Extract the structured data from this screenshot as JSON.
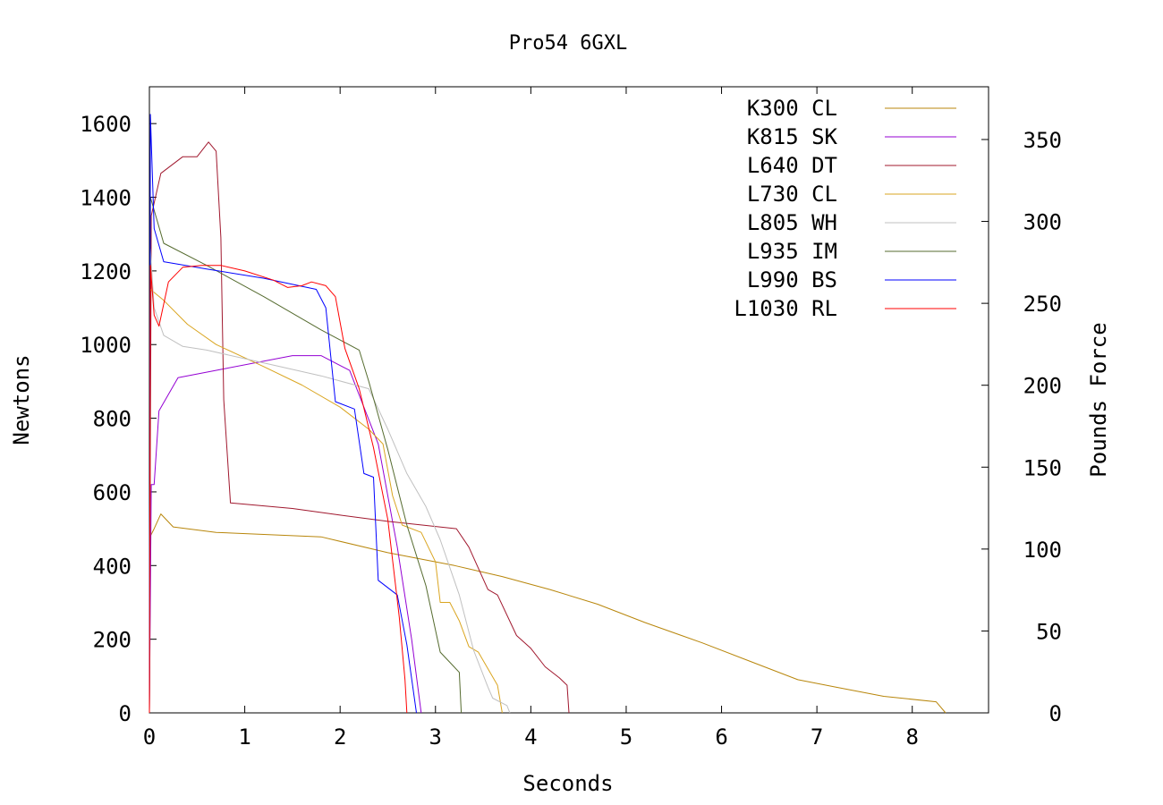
{
  "chart_data": {
    "type": "line",
    "title": "Pro54 6GXL",
    "xlabel": "Seconds",
    "ylabel": "Newtons",
    "y2label": "Pounds Force",
    "xlim": [
      0,
      8.8
    ],
    "ylim": [
      0,
      1700
    ],
    "y2lim": [
      0,
      382.2
    ],
    "xticks": [
      "0",
      "1",
      "2",
      "3",
      "4",
      "5",
      "6",
      "7",
      "8"
    ],
    "yticks": [
      "0",
      "200",
      "400",
      "600",
      "800",
      "1000",
      "1200",
      "1400",
      "1600"
    ],
    "y2ticks": [
      "0",
      "50",
      "100",
      "150",
      "200",
      "250",
      "300",
      "350"
    ],
    "grid": false,
    "legend_position": "top-right",
    "series": [
      {
        "name": "K300 CL",
        "color": "#b8860b",
        "points": [
          [
            0,
            0
          ],
          [
            0.01,
            480
          ],
          [
            0.05,
            500
          ],
          [
            0.12,
            540
          ],
          [
            0.25,
            505
          ],
          [
            0.7,
            490
          ],
          [
            1.8,
            478
          ],
          [
            2.5,
            435
          ],
          [
            3.2,
            400
          ],
          [
            3.7,
            370
          ],
          [
            4.2,
            335
          ],
          [
            4.7,
            295
          ],
          [
            5.2,
            245
          ],
          [
            5.8,
            190
          ],
          [
            6.3,
            140
          ],
          [
            6.8,
            90
          ],
          [
            7.2,
            70
          ],
          [
            7.7,
            45
          ],
          [
            8.25,
            30
          ],
          [
            8.35,
            0
          ]
        ]
      },
      {
        "name": "K815 SK",
        "color": "#9400d3",
        "points": [
          [
            0,
            0
          ],
          [
            0.02,
            620
          ],
          [
            0.05,
            620
          ],
          [
            0.1,
            820
          ],
          [
            0.3,
            910
          ],
          [
            0.8,
            935
          ],
          [
            1.5,
            970
          ],
          [
            1.8,
            970
          ],
          [
            2.1,
            930
          ],
          [
            2.4,
            730
          ],
          [
            2.6,
            450
          ],
          [
            2.75,
            200
          ],
          [
            2.85,
            0
          ]
        ]
      },
      {
        "name": "L640 DT",
        "color": "#a0182e",
        "points": [
          [
            0,
            0
          ],
          [
            0.02,
            1350
          ],
          [
            0.12,
            1465
          ],
          [
            0.35,
            1510
          ],
          [
            0.5,
            1510
          ],
          [
            0.62,
            1550
          ],
          [
            0.7,
            1525
          ],
          [
            0.75,
            1290
          ],
          [
            0.78,
            850
          ],
          [
            0.85,
            570
          ],
          [
            1.5,
            555
          ],
          [
            2.0,
            537
          ],
          [
            2.5,
            520
          ],
          [
            3.22,
            500
          ],
          [
            3.35,
            450
          ],
          [
            3.55,
            335
          ],
          [
            3.65,
            320
          ],
          [
            3.85,
            210
          ],
          [
            4.0,
            175
          ],
          [
            4.15,
            125
          ],
          [
            4.3,
            95
          ],
          [
            4.38,
            75
          ],
          [
            4.4,
            0
          ]
        ]
      },
      {
        "name": "L730 CL",
        "color": "#daa520",
        "points": [
          [
            0,
            0
          ],
          [
            0.01,
            1150
          ],
          [
            0.15,
            1120
          ],
          [
            0.4,
            1055
          ],
          [
            0.7,
            1000
          ],
          [
            1.2,
            940
          ],
          [
            1.6,
            890
          ],
          [
            2.0,
            830
          ],
          [
            2.3,
            770
          ],
          [
            2.45,
            730
          ],
          [
            2.55,
            590
          ],
          [
            2.65,
            510
          ],
          [
            2.85,
            490
          ],
          [
            3.0,
            410
          ],
          [
            3.05,
            300
          ],
          [
            3.15,
            300
          ],
          [
            3.25,
            250
          ],
          [
            3.35,
            180
          ],
          [
            3.45,
            165
          ],
          [
            3.55,
            120
          ],
          [
            3.65,
            75
          ],
          [
            3.7,
            0
          ]
        ]
      },
      {
        "name": "L805 WH",
        "color": "#c0c0c0",
        "points": [
          [
            0,
            0
          ],
          [
            0.01,
            1260
          ],
          [
            0.05,
            1100
          ],
          [
            0.15,
            1025
          ],
          [
            0.35,
            995
          ],
          [
            0.6,
            985
          ],
          [
            1.2,
            950
          ],
          [
            1.8,
            915
          ],
          [
            2.3,
            880
          ],
          [
            2.5,
            770
          ],
          [
            2.7,
            650
          ],
          [
            2.9,
            560
          ],
          [
            3.05,
            470
          ],
          [
            3.25,
            320
          ],
          [
            3.4,
            170
          ],
          [
            3.55,
            70
          ],
          [
            3.6,
            40
          ],
          [
            3.75,
            20
          ],
          [
            3.78,
            0
          ]
        ]
      },
      {
        "name": "L935 IM",
        "color": "#556b2f",
        "points": [
          [
            0,
            0
          ],
          [
            0.01,
            1400
          ],
          [
            0.15,
            1275
          ],
          [
            0.6,
            1215
          ],
          [
            1.2,
            1130
          ],
          [
            1.8,
            1040
          ],
          [
            2.2,
            985
          ],
          [
            2.3,
            900
          ],
          [
            2.5,
            715
          ],
          [
            2.7,
            510
          ],
          [
            2.9,
            345
          ],
          [
            3.05,
            165
          ],
          [
            3.25,
            110
          ],
          [
            3.27,
            0
          ]
        ]
      },
      {
        "name": "L990 BS",
        "color": "#0000ff",
        "points": [
          [
            0,
            0
          ],
          [
            0.01,
            1625
          ],
          [
            0.05,
            1315
          ],
          [
            0.15,
            1225
          ],
          [
            0.6,
            1205
          ],
          [
            1.2,
            1180
          ],
          [
            1.75,
            1150
          ],
          [
            1.85,
            1100
          ],
          [
            1.95,
            845
          ],
          [
            2.15,
            825
          ],
          [
            2.25,
            650
          ],
          [
            2.35,
            640
          ],
          [
            2.4,
            360
          ],
          [
            2.6,
            320
          ],
          [
            2.7,
            185
          ],
          [
            2.8,
            0
          ]
        ]
      },
      {
        "name": "L1030 RL",
        "color": "#ff0000",
        "points": [
          [
            0,
            0
          ],
          [
            0.01,
            1215
          ],
          [
            0.05,
            1080
          ],
          [
            0.1,
            1050
          ],
          [
            0.2,
            1170
          ],
          [
            0.35,
            1210
          ],
          [
            0.55,
            1215
          ],
          [
            0.75,
            1215
          ],
          [
            1.0,
            1200
          ],
          [
            1.3,
            1175
          ],
          [
            1.45,
            1155
          ],
          [
            1.6,
            1160
          ],
          [
            1.7,
            1170
          ],
          [
            1.85,
            1160
          ],
          [
            1.95,
            1130
          ],
          [
            2.05,
            990
          ],
          [
            2.2,
            880
          ],
          [
            2.35,
            720
          ],
          [
            2.5,
            525
          ],
          [
            2.62,
            260
          ],
          [
            2.68,
            90
          ],
          [
            2.7,
            0
          ]
        ]
      }
    ]
  }
}
